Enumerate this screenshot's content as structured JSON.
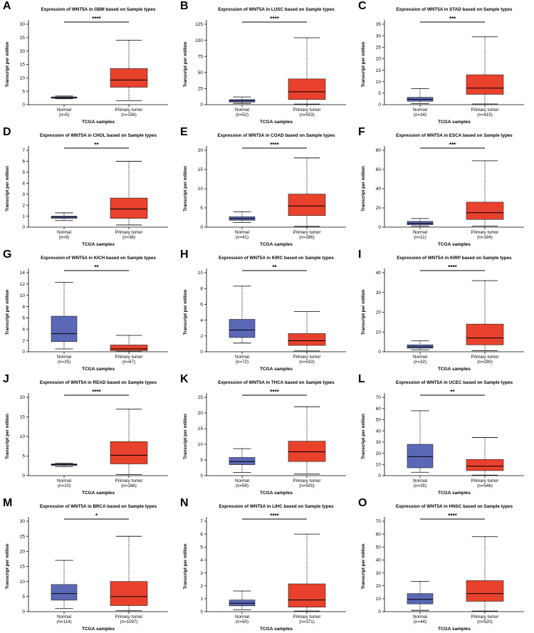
{
  "chart_data": [
    {
      "type": "box",
      "panel": "A",
      "title": "Expression of WNT5A in GBM based on Sample types",
      "xlabel": "TCGA samples",
      "ylabel": "Transcript per million",
      "ylim": [
        0,
        30
      ],
      "yticks": [
        0,
        5,
        10,
        15,
        20,
        25,
        30
      ],
      "significance": "****",
      "groups": [
        {
          "name": "Normal",
          "n": "(n=5)",
          "color": "#5b68b5",
          "min": 2.2,
          "q1": 2.4,
          "median": 2.6,
          "q3": 2.9,
          "max": 3.2
        },
        {
          "name": "Primary tumor",
          "n": "(n=156)",
          "color": "#e8412c",
          "min": 1.5,
          "q1": 6.5,
          "median": 9.2,
          "q3": 13.5,
          "max": 24
        }
      ]
    },
    {
      "type": "box",
      "panel": "B",
      "title": "Expression of WNT5A in LUSC based on Sample types",
      "xlabel": "TCGA samples",
      "ylabel": "Transcript per million",
      "ylim": [
        0,
        125
      ],
      "yticks": [
        0,
        25,
        50,
        75,
        100,
        125
      ],
      "significance": "****",
      "groups": [
        {
          "name": "Normal",
          "n": "(n=52)",
          "color": "#5b68b5",
          "min": 2,
          "q1": 4,
          "median": 6,
          "q3": 8,
          "max": 12
        },
        {
          "name": "Primary tumor",
          "n": "(n=503)",
          "color": "#e8412c",
          "min": 1,
          "q1": 8,
          "median": 20,
          "q3": 40,
          "max": 104
        }
      ]
    },
    {
      "type": "box",
      "panel": "C",
      "title": "Expression of WNT5A in STAD based on Sample types",
      "xlabel": "TCGA samples",
      "ylabel": "Transcript per million",
      "ylim": [
        0,
        35
      ],
      "yticks": [
        0,
        5,
        10,
        15,
        20,
        25,
        30,
        35
      ],
      "significance": "***",
      "groups": [
        {
          "name": "Normal",
          "n": "(n=34)",
          "color": "#5b68b5",
          "min": 0.5,
          "q1": 1.5,
          "median": 2.3,
          "q3": 3.2,
          "max": 7
        },
        {
          "name": "Primary tumor",
          "n": "(n=415)",
          "color": "#e8412c",
          "min": 0.3,
          "q1": 4.5,
          "median": 7.2,
          "q3": 13,
          "max": 29.5
        }
      ]
    },
    {
      "type": "box",
      "panel": "D",
      "title": "Expression of WNT5A in CHOL based on Sample types",
      "xlabel": "TCGA samples",
      "ylabel": "Transcript per million",
      "ylim": [
        0,
        7
      ],
      "yticks": [
        0,
        1,
        2,
        3,
        4,
        5,
        6,
        7
      ],
      "significance": "**",
      "groups": [
        {
          "name": "Normal",
          "n": "(n=9)",
          "color": "#5b68b5",
          "min": 0.6,
          "q1": 0.8,
          "median": 0.92,
          "q3": 1.0,
          "max": 1.3
        },
        {
          "name": "Primary tumor",
          "n": "(n=36)",
          "color": "#e8412c",
          "min": 0.2,
          "q1": 0.8,
          "median": 1.65,
          "q3": 2.65,
          "max": 6
        }
      ]
    },
    {
      "type": "box",
      "panel": "E",
      "title": "Expression of WNT5A in COAD based on Sample types",
      "xlabel": "TCGA samples",
      "ylabel": "Transcript per million",
      "ylim": [
        0,
        20
      ],
      "yticks": [
        0,
        5,
        10,
        15,
        20
      ],
      "significance": "****",
      "groups": [
        {
          "name": "Normal",
          "n": "(n=41)",
          "color": "#5b68b5",
          "min": 1.2,
          "q1": 1.8,
          "median": 2.2,
          "q3": 2.7,
          "max": 4
        },
        {
          "name": "Primary tumor",
          "n": "(n=286)",
          "color": "#e8412c",
          "min": 0.2,
          "q1": 3,
          "median": 5.5,
          "q3": 8.6,
          "max": 18
        }
      ]
    },
    {
      "type": "box",
      "panel": "F",
      "title": "Expression of WNT5A in ESCA based on Sample types",
      "xlabel": "TCGA samples",
      "ylabel": "Transcript per million",
      "ylim": [
        0,
        80
      ],
      "yticks": [
        0,
        20,
        40,
        60,
        80
      ],
      "significance": "***",
      "groups": [
        {
          "name": "Normal",
          "n": "(n=11)",
          "color": "#5b68b5",
          "min": 1,
          "q1": 2.5,
          "median": 4,
          "q3": 6,
          "max": 9
        },
        {
          "name": "Primary tumor",
          "n": "(n=184)",
          "color": "#e8412c",
          "min": 1,
          "q1": 8,
          "median": 15,
          "q3": 26,
          "max": 69
        }
      ]
    },
    {
      "type": "box",
      "panel": "G",
      "title": "Expression of WNT5A in KICH based on Sample types",
      "xlabel": "TCGA samples",
      "ylabel": "Transcript per million",
      "ylim": [
        0,
        14
      ],
      "yticks": [
        0,
        2,
        4,
        6,
        8,
        10,
        12,
        14
      ],
      "significance": "**",
      "groups": [
        {
          "name": "Normal",
          "n": "(n=25)",
          "color": "#5b68b5",
          "min": 0.5,
          "q1": 1.8,
          "median": 3.2,
          "q3": 6.3,
          "max": 12.3
        },
        {
          "name": "Primary tumor",
          "n": "(n=67)",
          "color": "#e8412c",
          "min": 0.05,
          "q1": 0.2,
          "median": 0.5,
          "q3": 1.2,
          "max": 2.9
        }
      ]
    },
    {
      "type": "box",
      "panel": "H",
      "title": "Expression of WNT5A in KIRC based on Sample types",
      "xlabel": "TCGA samples",
      "ylabel": "Transcript per million",
      "ylim": [
        0,
        10
      ],
      "yticks": [
        0,
        2,
        4,
        6,
        8,
        10
      ],
      "significance": "**",
      "groups": [
        {
          "name": "Normal",
          "n": "(n=72)",
          "color": "#5b68b5",
          "min": 1.1,
          "q1": 1.8,
          "median": 2.75,
          "q3": 4.1,
          "max": 8.3
        },
        {
          "name": "Primary tumor",
          "n": "(n=533)",
          "color": "#e8412c",
          "min": 0.1,
          "q1": 0.8,
          "median": 1.4,
          "q3": 2.3,
          "max": 5.1
        }
      ]
    },
    {
      "type": "box",
      "panel": "I",
      "title": "Expression of WNT5A in KIRP based on Sample types",
      "xlabel": "TCGA samples",
      "ylabel": "Transcript per million",
      "ylim": [
        0,
        40
      ],
      "yticks": [
        0,
        10,
        20,
        30,
        40
      ],
      "significance": "****",
      "groups": [
        {
          "name": "Normal",
          "n": "(n=32)",
          "color": "#5b68b5",
          "min": 1,
          "q1": 1.8,
          "median": 2.5,
          "q3": 3.5,
          "max": 5.5
        },
        {
          "name": "Primary tumor",
          "n": "(n=290)",
          "color": "#e8412c",
          "min": 0.5,
          "q1": 3.5,
          "median": 7,
          "q3": 14,
          "max": 36
        }
      ]
    },
    {
      "type": "box",
      "panel": "J",
      "title": "Expression of WNT5A in READ based on Sample types",
      "xlabel": "TCGA samples",
      "ylabel": "Transcript per million",
      "ylim": [
        0,
        20
      ],
      "yticks": [
        0,
        5,
        10,
        15,
        20
      ],
      "significance": "****",
      "groups": [
        {
          "name": "Normal",
          "n": "(n=10)",
          "color": "#5b68b5",
          "min": 2.3,
          "q1": 2.6,
          "median": 2.8,
          "q3": 3.0,
          "max": 3.2
        },
        {
          "name": "Primary tumor",
          "n": "(n=166)",
          "color": "#e8412c",
          "min": 0.3,
          "q1": 3,
          "median": 5.2,
          "q3": 8.7,
          "max": 17
        }
      ]
    },
    {
      "type": "box",
      "panel": "K",
      "title": "Expression of WNT5A in THCA based on Sample types",
      "xlabel": "TCGA samples",
      "ylabel": "Transcript per million",
      "ylim": [
        0,
        25
      ],
      "yticks": [
        0,
        5,
        10,
        15,
        20,
        25
      ],
      "significance": "****",
      "groups": [
        {
          "name": "Normal",
          "n": "(n=59)",
          "color": "#5b68b5",
          "min": 1,
          "q1": 3.5,
          "median": 4.5,
          "q3": 5.8,
          "max": 8.6
        },
        {
          "name": "Primary tumor",
          "n": "(n=505)",
          "color": "#e8412c",
          "min": 0.5,
          "q1": 4.5,
          "median": 7.6,
          "q3": 11,
          "max": 22
        }
      ]
    },
    {
      "type": "box",
      "panel": "L",
      "title": "Expression of WNT5A in UCEC based on Sample types",
      "xlabel": "TCGA samples",
      "ylabel": "Transcript per million",
      "ylim": [
        0,
        70
      ],
      "yticks": [
        0,
        10,
        20,
        30,
        40,
        50,
        60,
        70
      ],
      "significance": "**",
      "groups": [
        {
          "name": "Normal",
          "n": "(n=35)",
          "color": "#5b68b5",
          "min": 3,
          "q1": 7,
          "median": 17,
          "q3": 28,
          "max": 58
        },
        {
          "name": "Primary tumor",
          "n": "(n=546)",
          "color": "#e8412c",
          "min": 0.5,
          "q1": 4.5,
          "median": 8.5,
          "q3": 14.5,
          "max": 34
        }
      ]
    },
    {
      "type": "box",
      "panel": "M",
      "title": "Expression of WNT5A in BRCA based on Sample types",
      "xlabel": "TCGA samples",
      "ylabel": "Transcript per million",
      "ylim": [
        0,
        30
      ],
      "yticks": [
        0,
        5,
        10,
        15,
        20,
        25,
        30
      ],
      "significance": "*",
      "groups": [
        {
          "name": "Normal",
          "n": "(n=114)",
          "color": "#5b68b5",
          "min": 1,
          "q1": 3.8,
          "median": 6,
          "q3": 9,
          "max": 17
        },
        {
          "name": "Primary tumor",
          "n": "(n=1097)",
          "color": "#e8412c",
          "min": 0.3,
          "q1": 2,
          "median": 5,
          "q3": 10,
          "max": 25
        }
      ]
    },
    {
      "type": "box",
      "panel": "N",
      "title": "Expression of WNT5A in LIHC based on Sample types",
      "xlabel": "TCGA samples",
      "ylabel": "Transcript per million",
      "ylim": [
        0,
        7
      ],
      "yticks": [
        0,
        1,
        2,
        3,
        4,
        5,
        6,
        7
      ],
      "significance": "****",
      "groups": [
        {
          "name": "Normal",
          "n": "(n=50)",
          "color": "#5b68b5",
          "min": 0.15,
          "q1": 0.45,
          "median": 0.65,
          "q3": 0.9,
          "max": 1.6
        },
        {
          "name": "Primary tumor",
          "n": "(n=371)",
          "color": "#e8412c",
          "min": 0.05,
          "q1": 0.35,
          "median": 0.9,
          "q3": 2.15,
          "max": 6
        }
      ]
    },
    {
      "type": "box",
      "panel": "O",
      "title": "Expression of WNT5A in HNSC based on Sample types",
      "xlabel": "TCGA samples",
      "ylabel": "Transcript per million",
      "ylim": [
        0,
        70
      ],
      "yticks": [
        0,
        10,
        20,
        30,
        40,
        50,
        60,
        70
      ],
      "significance": "****",
      "groups": [
        {
          "name": "Normal",
          "n": "(n=44)",
          "color": "#5b68b5",
          "min": 1,
          "q1": 6,
          "median": 9.5,
          "q3": 14,
          "max": 23.5
        },
        {
          "name": "Primary tumor",
          "n": "(n=520)",
          "color": "#e8412c",
          "min": 0.5,
          "q1": 8,
          "median": 14,
          "q3": 24,
          "max": 58
        }
      ]
    }
  ]
}
